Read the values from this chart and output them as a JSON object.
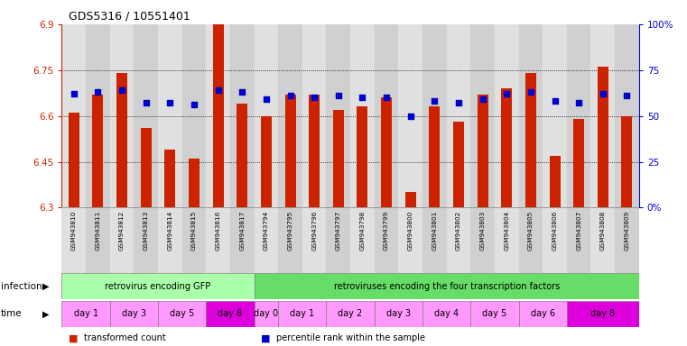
{
  "title": "GDS5316 / 10551401",
  "samples": [
    "GSM943810",
    "GSM943811",
    "GSM943812",
    "GSM943813",
    "GSM943814",
    "GSM943815",
    "GSM943816",
    "GSM943817",
    "GSM943794",
    "GSM943795",
    "GSM943796",
    "GSM943797",
    "GSM943798",
    "GSM943799",
    "GSM943800",
    "GSM943801",
    "GSM943802",
    "GSM943803",
    "GSM943804",
    "GSM943805",
    "GSM943806",
    "GSM943807",
    "GSM943808",
    "GSM943809"
  ],
  "bar_values": [
    6.61,
    6.67,
    6.74,
    6.56,
    6.49,
    6.46,
    6.9,
    6.64,
    6.6,
    6.67,
    6.67,
    6.62,
    6.63,
    6.66,
    6.35,
    6.63,
    6.58,
    6.67,
    6.69,
    6.74,
    6.47,
    6.59,
    6.76,
    6.6
  ],
  "dot_values": [
    62,
    63,
    64,
    57,
    57,
    56,
    64,
    63,
    59,
    61,
    60,
    61,
    60,
    60,
    50,
    58,
    57,
    59,
    62,
    63,
    58,
    57,
    62,
    61
  ],
  "bar_bottom": 6.3,
  "ylim_left": [
    6.3,
    6.9
  ],
  "ylim_right": [
    0,
    100
  ],
  "yticks_left": [
    6.3,
    6.45,
    6.6,
    6.75,
    6.9
  ],
  "ytick_labels_left": [
    "6.3",
    "6.45",
    "6.6",
    "6.75",
    "6.9"
  ],
  "yticks_right": [
    0,
    25,
    50,
    75,
    100
  ],
  "ytick_labels_right": [
    "0%",
    "25",
    "50",
    "75",
    "100%"
  ],
  "bar_color": "#cc2200",
  "dot_color": "#0000cc",
  "bg_color": "white",
  "col_colors": [
    "#e0e0e0",
    "#d0d0d0"
  ],
  "infection_groups": [
    {
      "label": "retrovirus encoding GFP",
      "start": 0,
      "end": 8,
      "color": "#aaffaa"
    },
    {
      "label": "retroviruses encoding the four transcription factors",
      "start": 8,
      "end": 24,
      "color": "#66dd66"
    }
  ],
  "time_groups": [
    {
      "label": "day 1",
      "start": 0,
      "end": 2,
      "color": "#ff99ff"
    },
    {
      "label": "day 3",
      "start": 2,
      "end": 4,
      "color": "#ff99ff"
    },
    {
      "label": "day 5",
      "start": 4,
      "end": 6,
      "color": "#ff99ff"
    },
    {
      "label": "day 8",
      "start": 6,
      "end": 8,
      "color": "#dd00dd"
    },
    {
      "label": "day 0",
      "start": 8,
      "end": 9,
      "color": "#ff99ff"
    },
    {
      "label": "day 1",
      "start": 9,
      "end": 11,
      "color": "#ff99ff"
    },
    {
      "label": "day 2",
      "start": 11,
      "end": 13,
      "color": "#ff99ff"
    },
    {
      "label": "day 3",
      "start": 13,
      "end": 15,
      "color": "#ff99ff"
    },
    {
      "label": "day 4",
      "start": 15,
      "end": 17,
      "color": "#ff99ff"
    },
    {
      "label": "day 5",
      "start": 17,
      "end": 19,
      "color": "#ff99ff"
    },
    {
      "label": "day 6",
      "start": 19,
      "end": 21,
      "color": "#ff99ff"
    },
    {
      "label": "day 8",
      "start": 21,
      "end": 24,
      "color": "#dd00dd"
    }
  ],
  "legend_items": [
    {
      "label": "transformed count",
      "color": "#cc2200"
    },
    {
      "label": "percentile rank within the sample",
      "color": "#0000cc"
    }
  ],
  "infection_label": "infection",
  "time_label": "time"
}
